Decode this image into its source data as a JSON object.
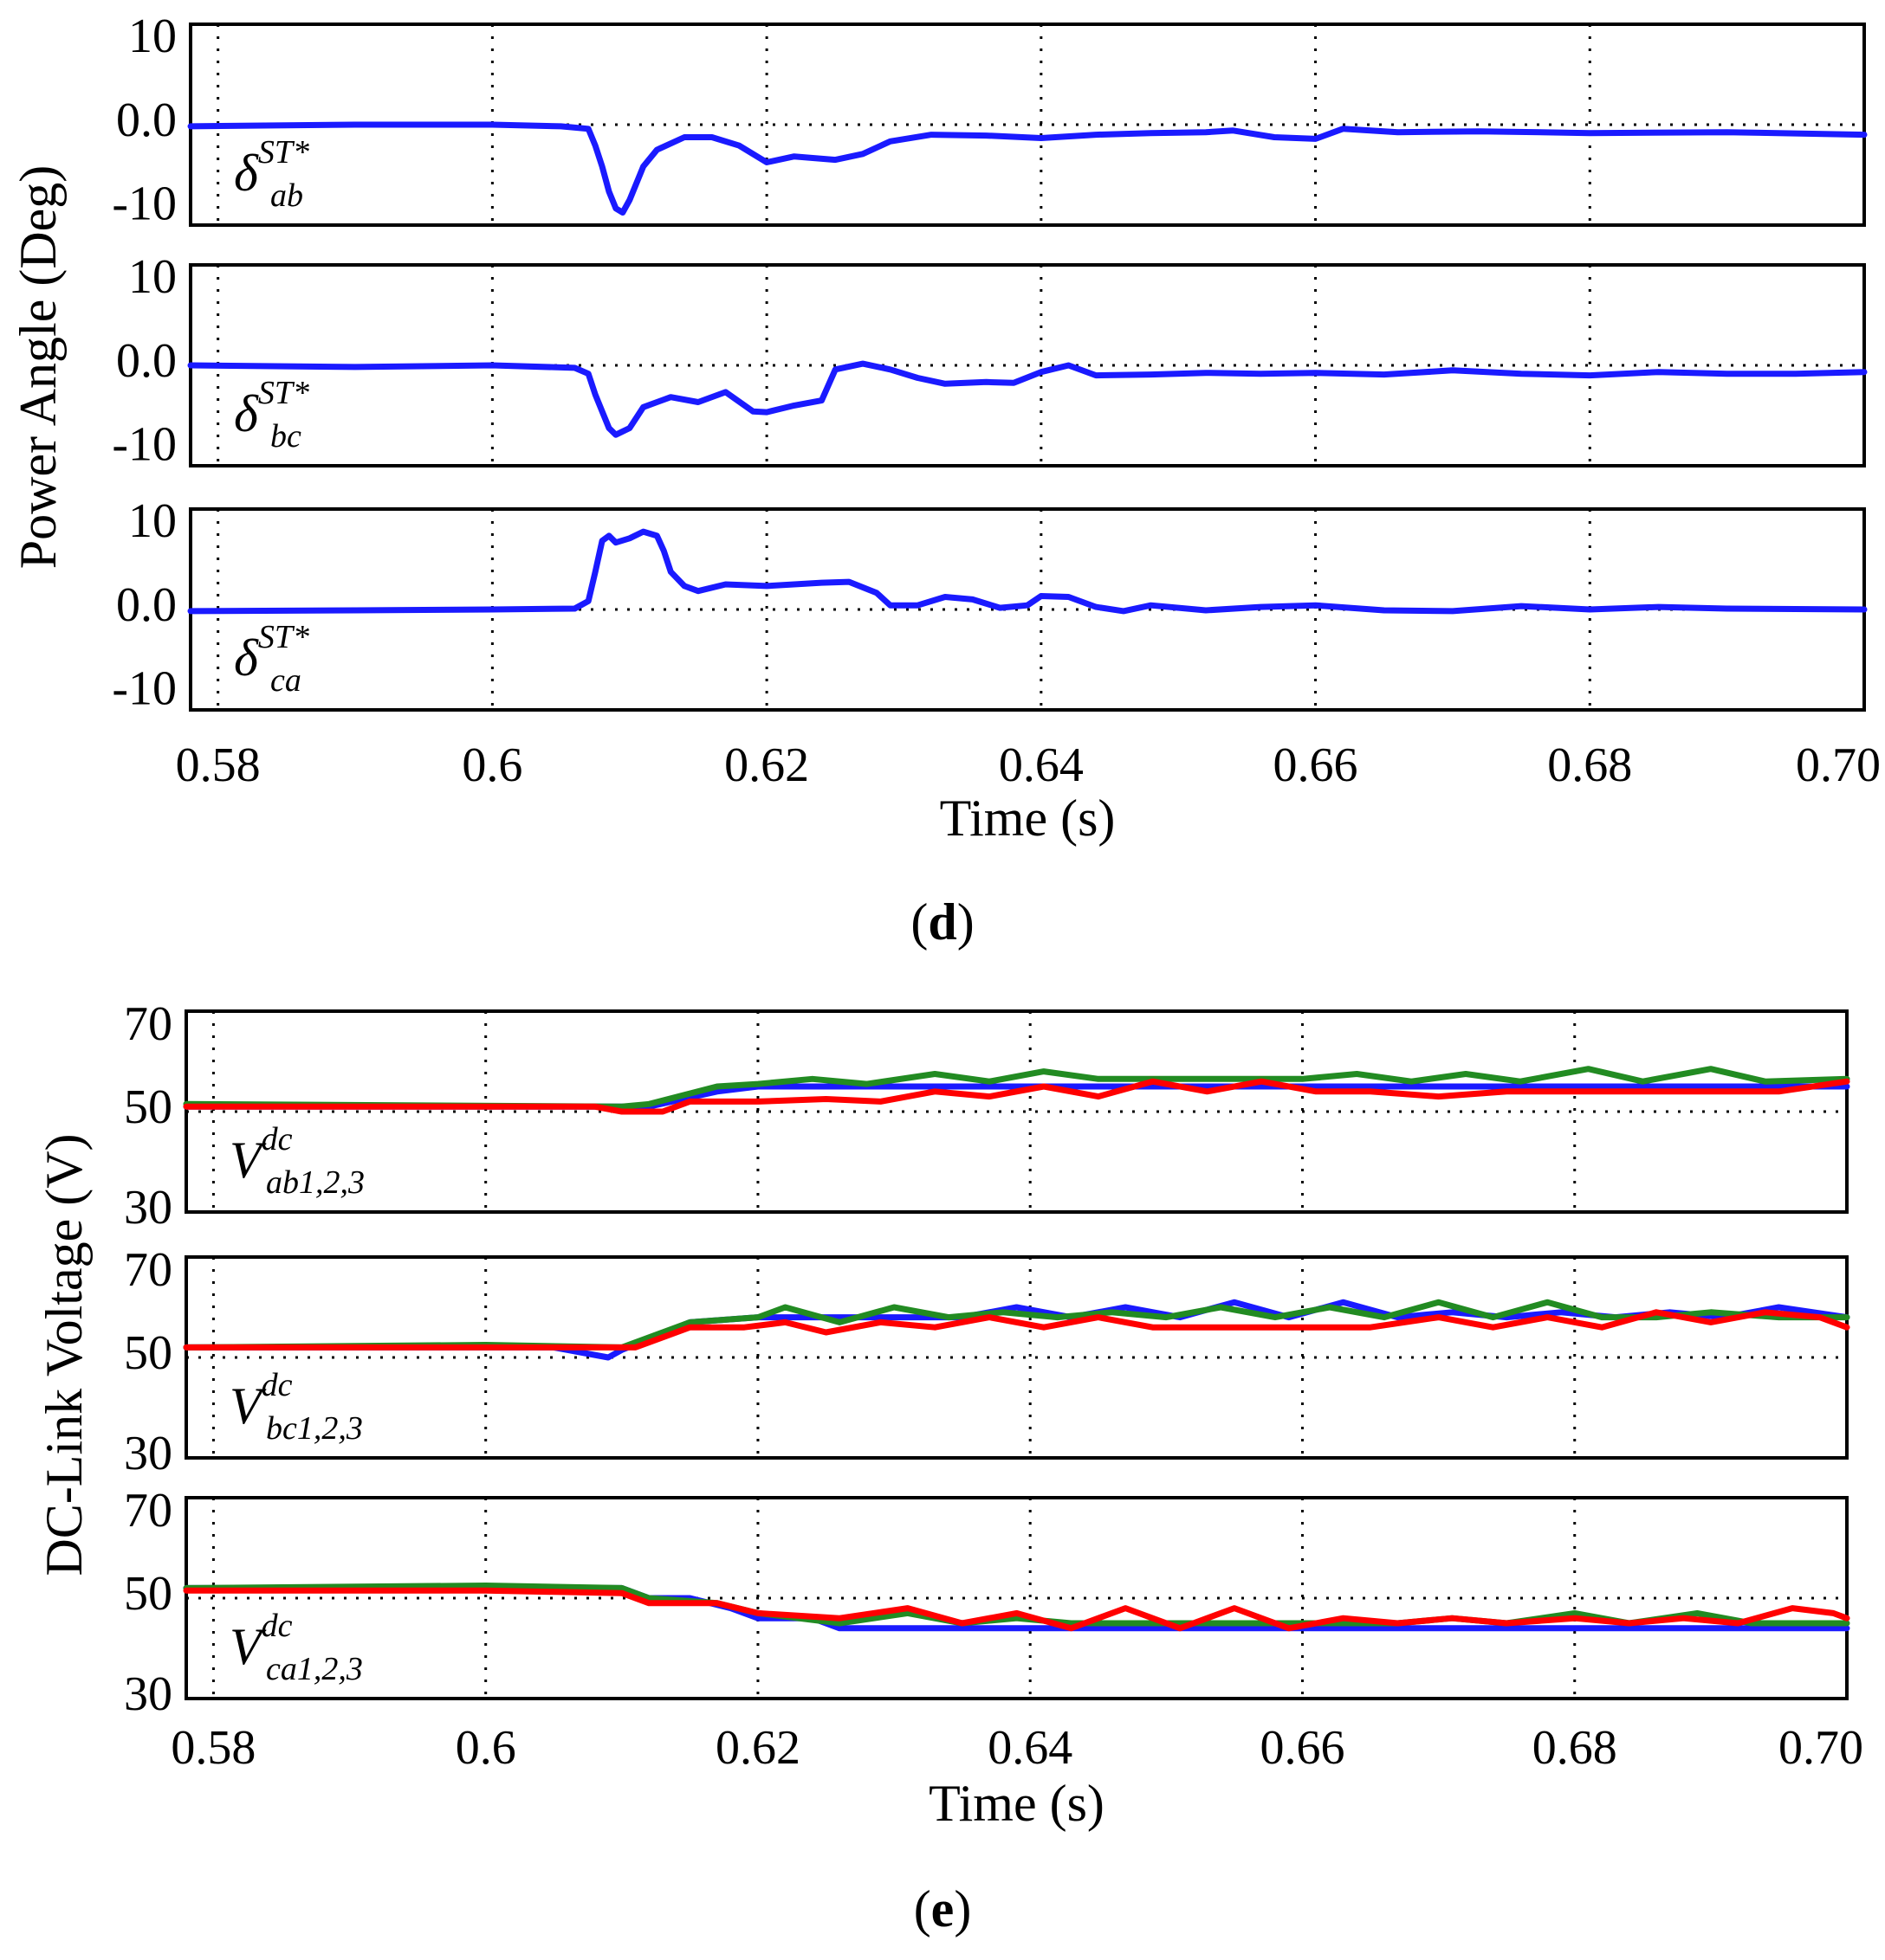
{
  "chart_data": [
    {
      "id": "d",
      "type": "line",
      "panel_label": "(d)",
      "panel_letter": "d",
      "ylabel": "Power Angle (Deg)",
      "xlabel": "Time (s)",
      "x_ticks": [
        "0.58",
        "0.6",
        "0.62",
        "0.64",
        "0.66",
        "0.68",
        "0.70"
      ],
      "x_tick_values": [
        0.58,
        0.6,
        0.62,
        0.64,
        0.66,
        0.68,
        0.7
      ],
      "xlim": [
        0.578,
        0.7
      ],
      "grid": true,
      "subplots": [
        {
          "ylim": [
            -12,
            12
          ],
          "y_ticks": [
            "10",
            "0.0",
            "-10"
          ],
          "y_tick_values": [
            10,
            0,
            -10
          ],
          "ref_line": 0,
          "label": {
            "sym": "δ",
            "sup": "ST*",
            "sub": "ab"
          },
          "series": [
            {
              "name": "δab ST*",
              "color": "#1a1aff",
              "x": [
                0.578,
                0.59,
                0.6,
                0.605,
                0.607,
                0.6075,
                0.608,
                0.6085,
                0.609,
                0.6095,
                0.61,
                0.611,
                0.612,
                0.614,
                0.616,
                0.618,
                0.62,
                0.622,
                0.625,
                0.627,
                0.629,
                0.632,
                0.636,
                0.64,
                0.644,
                0.648,
                0.652,
                0.654,
                0.657,
                0.66,
                0.662,
                0.666,
                0.672,
                0.68,
                0.69,
                0.7
              ],
              "y": [
                -0.2,
                0,
                0,
                -0.2,
                -0.5,
                -2.5,
                -5,
                -8,
                -10,
                -10.5,
                -9,
                -5,
                -3,
                -1.5,
                -1.5,
                -2.5,
                -4.5,
                -3.8,
                -4.2,
                -3.5,
                -2,
                -1.2,
                -1.3,
                -1.6,
                -1.2,
                -1.0,
                -0.9,
                -0.7,
                -1.5,
                -1.7,
                -0.5,
                -0.9,
                -0.8,
                -1.0,
                -0.9,
                -1.2
              ]
            }
          ]
        },
        {
          "ylim": [
            -12,
            12
          ],
          "y_ticks": [
            "10",
            "0.0",
            "-10"
          ],
          "y_tick_values": [
            10,
            0,
            -10
          ],
          "ref_line": 0,
          "label": {
            "sym": "δ",
            "sup": "ST*",
            "sub": "bc"
          },
          "series": [
            {
              "name": "δbc ST*",
              "color": "#1a1aff",
              "x": [
                0.578,
                0.59,
                0.6,
                0.606,
                0.607,
                0.6075,
                0.608,
                0.6085,
                0.609,
                0.61,
                0.611,
                0.613,
                0.615,
                0.617,
                0.619,
                0.62,
                0.622,
                0.624,
                0.625,
                0.627,
                0.629,
                0.631,
                0.633,
                0.636,
                0.638,
                0.64,
                0.642,
                0.644,
                0.648,
                0.652,
                0.656,
                0.66,
                0.665,
                0.67,
                0.675,
                0.68,
                0.685,
                0.69,
                0.695,
                0.7
              ],
              "y": [
                0,
                -0.2,
                0,
                -0.3,
                -1.0,
                -3.5,
                -5.5,
                -7.5,
                -8.3,
                -7.5,
                -5,
                -3.8,
                -4.4,
                -3.2,
                -5.5,
                -5.6,
                -4.8,
                -4.2,
                -0.5,
                0.2,
                -0.5,
                -1.5,
                -2.2,
                -2.0,
                -2.1,
                -0.8,
                0,
                -1.2,
                -1.1,
                -0.9,
                -1.0,
                -0.9,
                -1.1,
                -0.6,
                -1.0,
                -1.2,
                -0.8,
                -1.0,
                -1.0,
                -0.8
              ]
            }
          ]
        },
        {
          "ylim": [
            -12,
            12
          ],
          "y_ticks": [
            "10",
            "0.0",
            "-10"
          ],
          "y_tick_values": [
            10,
            0,
            -10
          ],
          "ref_line": 0,
          "label": {
            "sym": "δ",
            "sup": "ST*",
            "sub": "ca"
          },
          "series": [
            {
              "name": "δca ST*",
              "color": "#1a1aff",
              "x": [
                0.578,
                0.59,
                0.6,
                0.606,
                0.607,
                0.6075,
                0.608,
                0.6085,
                0.609,
                0.61,
                0.611,
                0.612,
                0.6125,
                0.613,
                0.614,
                0.615,
                0.617,
                0.62,
                0.624,
                0.626,
                0.628,
                0.629,
                0.631,
                0.633,
                0.635,
                0.637,
                0.639,
                0.64,
                0.642,
                0.644,
                0.646,
                0.648,
                0.652,
                0.656,
                0.66,
                0.665,
                0.67,
                0.675,
                0.68,
                0.685,
                0.69,
                0.7
              ],
              "y": [
                -0.2,
                -0.1,
                0,
                0.1,
                1.0,
                4.5,
                8.2,
                8.8,
                8.0,
                8.5,
                9.3,
                8.8,
                7.0,
                4.5,
                2.8,
                2.2,
                3.0,
                2.8,
                3.2,
                3.3,
                2.0,
                0.5,
                0.5,
                1.5,
                1.2,
                0.2,
                0.5,
                1.6,
                1.5,
                0.3,
                -0.2,
                0.5,
                -0.1,
                0.3,
                0.5,
                -0.1,
                -0.2,
                0.4,
                0,
                0.3,
                0.1,
                0
              ]
            }
          ]
        }
      ]
    },
    {
      "id": "e",
      "type": "line",
      "panel_label": "(e)",
      "panel_letter": "e",
      "ylabel": "DC-Link Voltage (V)",
      "xlabel": "Time (s)",
      "x_ticks": [
        "0.58",
        "0.6",
        "0.62",
        "0.64",
        "0.66",
        "0.68",
        "0.70"
      ],
      "x_tick_values": [
        0.58,
        0.6,
        0.62,
        0.64,
        0.66,
        0.68,
        0.7
      ],
      "xlim": [
        0.578,
        0.7
      ],
      "grid": true,
      "subplots": [
        {
          "ylim": [
            30,
            70
          ],
          "y_ticks": [
            "70",
            "50",
            "30"
          ],
          "y_tick_values": [
            70,
            50,
            30
          ],
          "ref_line": 50,
          "label": {
            "sym": "V",
            "sup": "dc",
            "sub": "ab1,2,3"
          },
          "series": [
            {
              "name": "Vab1 dc",
              "color": "#1a1aff",
              "x": [
                0.578,
                0.61,
                0.612,
                0.617,
                0.62,
                0.625,
                0.63,
                0.635,
                0.64,
                0.645,
                0.65,
                0.655,
                0.66,
                0.665,
                0.67,
                0.675,
                0.68,
                0.685,
                0.69,
                0.695,
                0.7
              ],
              "y": [
                51,
                51,
                51,
                54,
                55,
                55,
                55,
                55,
                55,
                55,
                55,
                55,
                55,
                55,
                55,
                55,
                55,
                55,
                55,
                55,
                55
              ]
            },
            {
              "name": "Vab2 dc",
              "color": "#228b22",
              "x": [
                0.578,
                0.61,
                0.612,
                0.617,
                0.62,
                0.624,
                0.628,
                0.633,
                0.637,
                0.641,
                0.645,
                0.65,
                0.655,
                0.66,
                0.664,
                0.668,
                0.672,
                0.676,
                0.681,
                0.685,
                0.69,
                0.694,
                0.7
              ],
              "y": [
                51.5,
                51,
                51.5,
                55,
                55.5,
                56.5,
                55.5,
                57.5,
                56,
                58,
                56.5,
                56.5,
                56.5,
                56.5,
                57.5,
                56,
                57.5,
                56,
                58.5,
                56,
                58.5,
                56,
                56.5
              ]
            },
            {
              "name": "Vab3 dc",
              "color": "#ff0000",
              "x": [
                0.578,
                0.608,
                0.61,
                0.613,
                0.615,
                0.62,
                0.625,
                0.629,
                0.633,
                0.637,
                0.641,
                0.645,
                0.649,
                0.653,
                0.657,
                0.661,
                0.665,
                0.67,
                0.675,
                0.68,
                0.685,
                0.69,
                0.695,
                0.7
              ],
              "y": [
                51,
                51,
                50,
                50,
                52,
                52,
                52.5,
                52,
                54,
                53,
                55,
                53,
                56,
                54,
                56,
                54,
                54,
                53,
                54,
                54,
                54,
                54,
                54,
                56
              ]
            }
          ]
        },
        {
          "ylim": [
            30,
            70
          ],
          "y_ticks": [
            "70",
            "50",
            "30"
          ],
          "y_tick_values": [
            70,
            50,
            30
          ],
          "ref_line": 50,
          "label": {
            "sym": "V",
            "sup": "dc",
            "sub": "bc1,2,3"
          },
          "series": [
            {
              "name": "Vbc1 dc",
              "color": "#1a1aff",
              "x": [
                0.578,
                0.6,
                0.605,
                0.609,
                0.61,
                0.615,
                0.62,
                0.625,
                0.63,
                0.635,
                0.639,
                0.643,
                0.647,
                0.651,
                0.655,
                0.659,
                0.663,
                0.667,
                0.671,
                0.675,
                0.679,
                0.683,
                0.687,
                0.691,
                0.695,
                0.7
              ],
              "y": [
                52,
                52,
                52,
                50,
                51.5,
                57,
                58,
                58,
                58,
                58,
                60,
                58,
                60,
                58,
                61,
                58,
                61,
                58,
                59,
                58,
                59,
                58,
                59,
                58,
                60,
                58
              ]
            },
            {
              "name": "Vbc2 dc",
              "color": "#228b22",
              "x": [
                0.578,
                0.6,
                0.61,
                0.615,
                0.62,
                0.622,
                0.626,
                0.63,
                0.634,
                0.638,
                0.642,
                0.646,
                0.65,
                0.654,
                0.658,
                0.662,
                0.666,
                0.67,
                0.674,
                0.678,
                0.682,
                0.686,
                0.69,
                0.695,
                0.7
              ],
              "y": [
                52,
                52.5,
                52,
                57,
                58,
                60,
                57,
                60,
                58,
                59,
                58,
                59,
                58,
                60,
                58,
                60,
                58,
                61,
                58,
                61,
                58,
                58,
                59,
                58,
                58
              ]
            },
            {
              "name": "Vbc3 dc",
              "color": "#ff0000",
              "x": [
                0.578,
                0.6,
                0.611,
                0.615,
                0.619,
                0.622,
                0.625,
                0.629,
                0.633,
                0.637,
                0.641,
                0.645,
                0.649,
                0.653,
                0.657,
                0.661,
                0.665,
                0.67,
                0.674,
                0.678,
                0.682,
                0.686,
                0.69,
                0.694,
                0.698,
                0.7
              ],
              "y": [
                52,
                52,
                52,
                56,
                56,
                57,
                55,
                57,
                56,
                58,
                56,
                58,
                56,
                56,
                56,
                56,
                56,
                58,
                56,
                58,
                56,
                59,
                57,
                59,
                58,
                56
              ]
            }
          ]
        },
        {
          "ylim": [
            30,
            70
          ],
          "y_ticks": [
            "70",
            "50",
            "30"
          ],
          "y_tick_values": [
            70,
            50,
            30
          ],
          "ref_line": 50,
          "label": {
            "sym": "V",
            "sup": "dc",
            "sub": "ca1,2,3"
          },
          "series": [
            {
              "name": "Vca1 dc",
              "color": "#1a1aff",
              "x": [
                0.578,
                0.61,
                0.612,
                0.615,
                0.618,
                0.62,
                0.624,
                0.626,
                0.63,
                0.65,
                0.7
              ],
              "y": [
                52,
                52,
                50,
                50,
                48,
                46,
                46,
                44,
                44,
                44,
                44
              ]
            },
            {
              "name": "Vca2 dc",
              "color": "#228b22",
              "x": [
                0.578,
                0.6,
                0.61,
                0.612,
                0.617,
                0.62,
                0.626,
                0.631,
                0.635,
                0.639,
                0.643,
                0.647,
                0.651,
                0.655,
                0.659,
                0.663,
                0.667,
                0.671,
                0.675,
                0.68,
                0.684,
                0.689,
                0.693,
                0.697,
                0.7
              ],
              "y": [
                52,
                52.5,
                52,
                50,
                49,
                47,
                45,
                47,
                45,
                46,
                45,
                45,
                45,
                45,
                45,
                45,
                45,
                46,
                45,
                47,
                45,
                47,
                45,
                45,
                45
              ]
            },
            {
              "name": "Vca3 dc",
              "color": "#ff0000",
              "x": [
                0.578,
                0.6,
                0.61,
                0.612,
                0.617,
                0.62,
                0.626,
                0.631,
                0.635,
                0.639,
                0.643,
                0.647,
                0.651,
                0.655,
                0.659,
                0.663,
                0.667,
                0.671,
                0.675,
                0.68,
                0.684,
                0.688,
                0.692,
                0.696,
                0.699,
                0.7
              ],
              "y": [
                51.5,
                51.5,
                51,
                49,
                49,
                47,
                46,
                48,
                45,
                47,
                44,
                48,
                44,
                48,
                44,
                46,
                45,
                46,
                45,
                46,
                45,
                46,
                45,
                48,
                47,
                46
              ]
            }
          ]
        }
      ]
    }
  ]
}
